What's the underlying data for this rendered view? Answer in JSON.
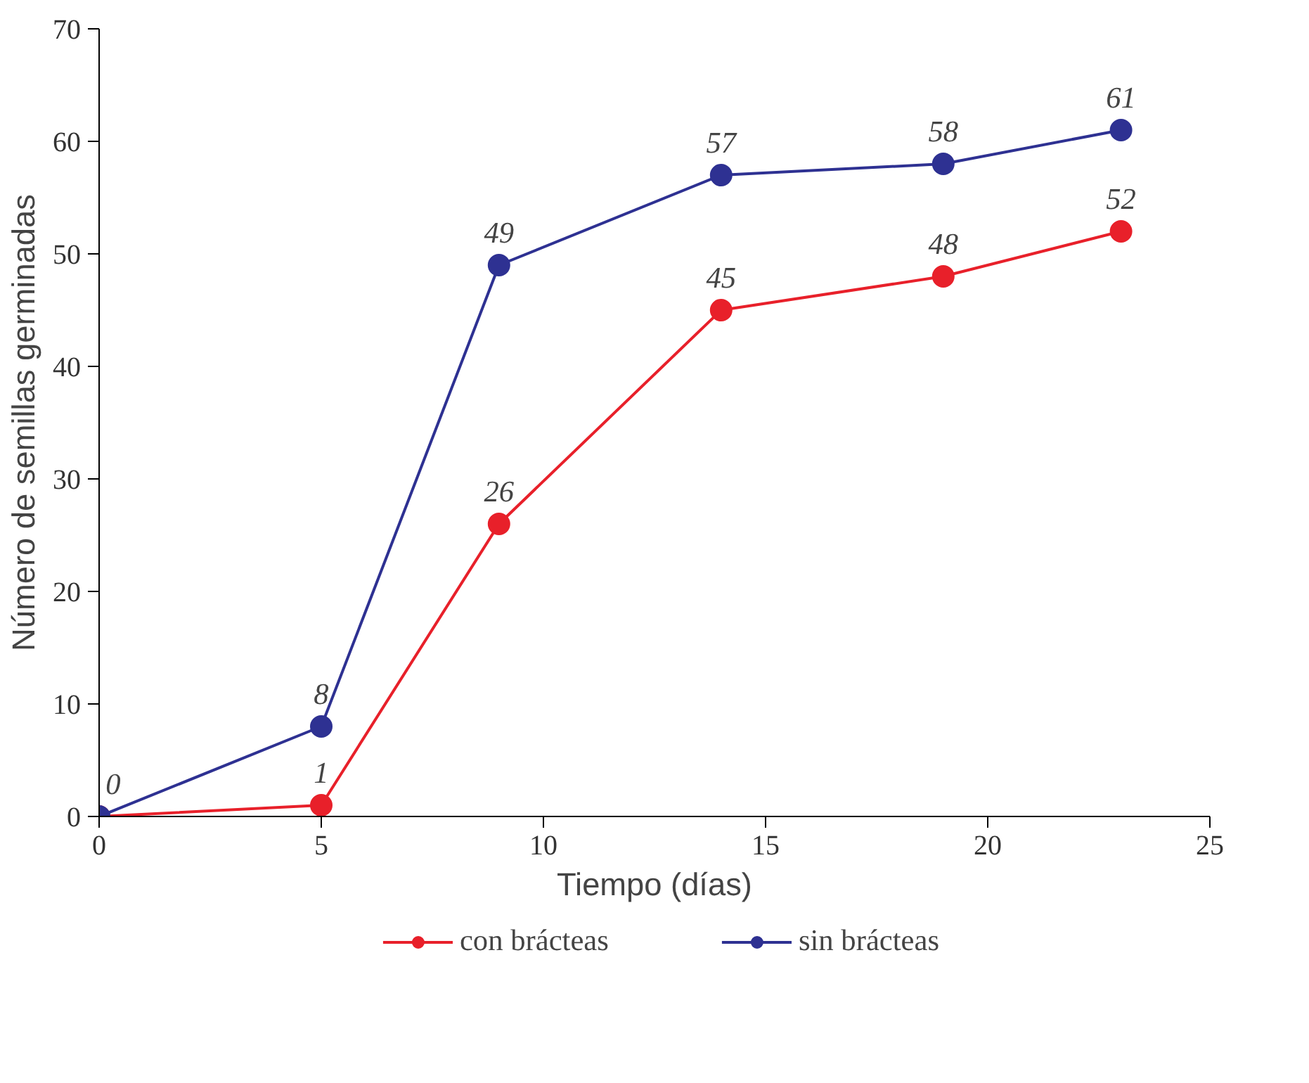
{
  "chart_data": {
    "type": "line",
    "xlabel": "Tiempo (días)",
    "ylabel": "Número de semillas germinadas",
    "x": [
      0,
      5,
      9,
      14,
      19,
      23
    ],
    "series": [
      {
        "name": "con brácteas",
        "color": "#e8202a",
        "values": [
          0,
          1,
          26,
          45,
          48,
          52
        ],
        "value_labels": [
          "0",
          "1",
          "26",
          "45",
          "48",
          "52"
        ]
      },
      {
        "name": "sin brácteas",
        "color": "#2e3192",
        "values": [
          0,
          8,
          49,
          57,
          58,
          61
        ],
        "value_labels": [
          null,
          "8",
          "49",
          "57",
          "58",
          "61"
        ]
      }
    ],
    "xlim": [
      0,
      25
    ],
    "xticks": [
      0,
      5,
      10,
      15,
      20,
      25
    ],
    "ylim": [
      0,
      70
    ],
    "yticks": [
      0,
      10,
      20,
      30,
      40,
      50,
      60,
      70
    ],
    "grid": false,
    "legend": "bottom",
    "marker": "circle",
    "line_style": "solid"
  }
}
